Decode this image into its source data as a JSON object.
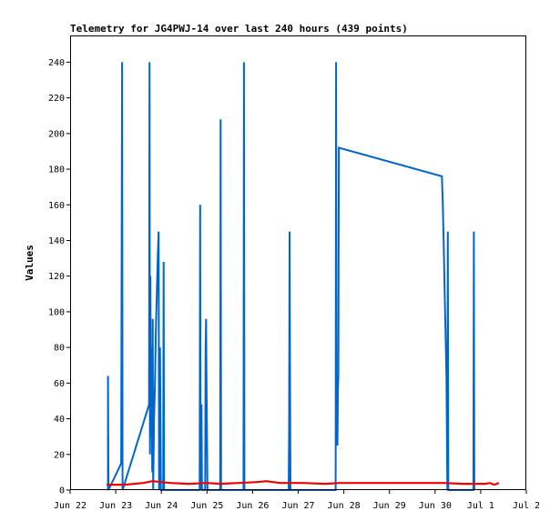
{
  "chart_data": {
    "type": "line",
    "title": "Telemetry for JG4PWJ-14 over last 240 hours (439 points)",
    "ylabel": "Values",
    "xlabel": "",
    "grid": false,
    "legend": "none",
    "ylim": [
      0,
      255
    ],
    "xlim": [
      0,
      10
    ],
    "x_ticks": [
      {
        "x": 0,
        "label": "Jun 22"
      },
      {
        "x": 1,
        "label": "Jun 23"
      },
      {
        "x": 2,
        "label": "Jun 24"
      },
      {
        "x": 3,
        "label": "Jun 25"
      },
      {
        "x": 4,
        "label": "Jun 26"
      },
      {
        "x": 5,
        "label": "Jun 27"
      },
      {
        "x": 6,
        "label": "Jun 28"
      },
      {
        "x": 7,
        "label": "Jun 29"
      },
      {
        "x": 8,
        "label": "Jun 30"
      },
      {
        "x": 9,
        "label": "Jul 1"
      },
      {
        "x": 10,
        "label": "Jul 2"
      }
    ],
    "y_ticks": [
      0,
      20,
      40,
      60,
      80,
      100,
      120,
      140,
      160,
      180,
      200,
      220,
      240
    ],
    "series": [
      {
        "color": "#0066cc",
        "points": [
          [
            0.83,
            0
          ],
          [
            0.83,
            64
          ],
          [
            0.84,
            0
          ],
          [
            1.12,
            15
          ],
          [
            1.14,
            240
          ],
          [
            1.15,
            0
          ],
          [
            1.73,
            48
          ],
          [
            1.74,
            240
          ],
          [
            1.75,
            20
          ],
          [
            1.76,
            120
          ],
          [
            1.77,
            30
          ],
          [
            1.78,
            80
          ],
          [
            1.8,
            10
          ],
          [
            1.81,
            96
          ],
          [
            1.82,
            0
          ],
          [
            1.84,
            40
          ],
          [
            1.86,
            60
          ],
          [
            1.88,
            90
          ],
          [
            1.9,
            110
          ],
          [
            1.92,
            130
          ],
          [
            1.94,
            145
          ],
          [
            1.95,
            0
          ],
          [
            1.97,
            80
          ],
          [
            1.99,
            0
          ],
          [
            2.04,
            0
          ],
          [
            2.05,
            128
          ],
          [
            2.06,
            0
          ],
          [
            2.84,
            0
          ],
          [
            2.85,
            160
          ],
          [
            2.86,
            0
          ],
          [
            2.88,
            48
          ],
          [
            2.89,
            0
          ],
          [
            2.96,
            0
          ],
          [
            2.97,
            80
          ],
          [
            2.98,
            96
          ],
          [
            2.99,
            60
          ],
          [
            3.0,
            32
          ],
          [
            3.01,
            0
          ],
          [
            3.29,
            0
          ],
          [
            3.3,
            208
          ],
          [
            3.31,
            0
          ],
          [
            3.8,
            0
          ],
          [
            3.81,
            240
          ],
          [
            3.82,
            0
          ],
          [
            4.79,
            0
          ],
          [
            4.8,
            32
          ],
          [
            4.81,
            145
          ],
          [
            4.82,
            64
          ],
          [
            4.83,
            0
          ],
          [
            5.82,
            0
          ],
          [
            5.83,
            240
          ],
          [
            5.84,
            40
          ],
          [
            5.86,
            25
          ],
          [
            5.87,
            56
          ],
          [
            5.88,
            64
          ],
          [
            5.89,
            192
          ],
          [
            8.15,
            176
          ],
          [
            8.17,
            160
          ],
          [
            8.19,
            138
          ],
          [
            8.21,
            112
          ],
          [
            8.23,
            88
          ],
          [
            8.25,
            64
          ],
          [
            8.27,
            0
          ],
          [
            8.28,
            145
          ],
          [
            8.29,
            0
          ],
          [
            8.84,
            0
          ],
          [
            8.85,
            145
          ],
          [
            8.86,
            0
          ]
        ]
      },
      {
        "color": "#ee0000",
        "points": [
          [
            0.8,
            3
          ],
          [
            1.2,
            3
          ],
          [
            1.6,
            4
          ],
          [
            1.8,
            5
          ],
          [
            2.2,
            4
          ],
          [
            2.6,
            3.5
          ],
          [
            3.0,
            4
          ],
          [
            3.3,
            3.5
          ],
          [
            3.7,
            4
          ],
          [
            4.1,
            4.5
          ],
          [
            4.3,
            5
          ],
          [
            4.6,
            4
          ],
          [
            5.1,
            4
          ],
          [
            5.6,
            3.5
          ],
          [
            5.9,
            4
          ],
          [
            6.6,
            4
          ],
          [
            7.4,
            4
          ],
          [
            8.2,
            4
          ],
          [
            8.6,
            3.5
          ],
          [
            9.1,
            3.5
          ],
          [
            9.2,
            4
          ],
          [
            9.3,
            3
          ],
          [
            9.4,
            4
          ]
        ]
      }
    ]
  }
}
